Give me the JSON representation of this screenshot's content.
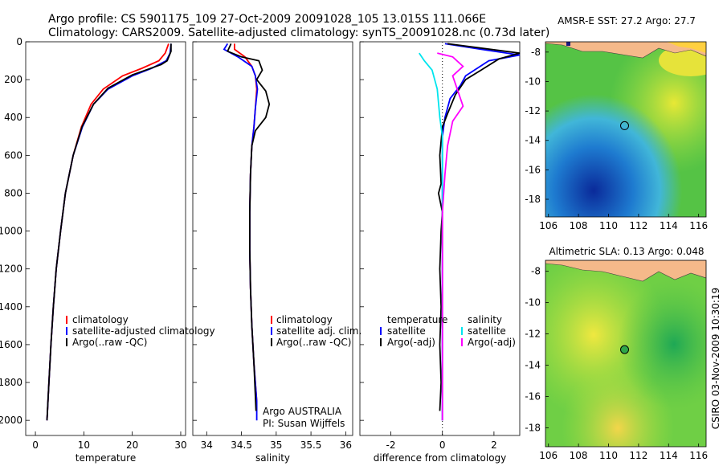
{
  "header": {
    "line1": "Argo profile: CS 5901175_109 27-Oct-2009 20091028_105 13.015S 111.066E",
    "line2": "Climatology: CARS2009. Satellite-adjusted climatology: synTS_20091028.nc (0.73d later)"
  },
  "side_label": "CSIRO 03-Nov-2009 10:30:19",
  "colors": {
    "climatology": "#ff0000",
    "satellite": "#0000ff",
    "argo": "#000000",
    "sal_satellite": "#00e5ee",
    "sal_argo": "#ff00ff",
    "land": "#f5b98a"
  },
  "chart_data": [
    {
      "type": "line",
      "id": "temperature",
      "xlabel": "temperature",
      "xlim": [
        -2,
        31
      ],
      "ylim": [
        0,
        2080
      ],
      "xticks": [
        0,
        10,
        20,
        30
      ],
      "yticks": [
        0,
        200,
        400,
        600,
        800,
        1000,
        1200,
        1400,
        1600,
        1800,
        2000
      ],
      "legend": [
        "climatology",
        "satellite-adjusted climatology",
        "Argo(..raw -QC)"
      ],
      "series": [
        {
          "name": "climatology",
          "color": "#ff0000",
          "points": [
            [
              27.5,
              10
            ],
            [
              26.8,
              60
            ],
            [
              25.5,
              100
            ],
            [
              22,
              140
            ],
            [
              18,
              180
            ],
            [
              14,
              250
            ],
            [
              11.5,
              330
            ],
            [
              9.5,
              450
            ],
            [
              7.8,
              600
            ],
            [
              6.2,
              800
            ],
            [
              5.2,
              1000
            ],
            [
              4.3,
              1200
            ],
            [
              3.7,
              1400
            ],
            [
              3.2,
              1600
            ],
            [
              2.8,
              1800
            ],
            [
              2.4,
              2000
            ]
          ]
        },
        {
          "name": "satellite-adjusted climatology",
          "color": "#0000ff",
          "points": [
            [
              28,
              10
            ],
            [
              27.8,
              60
            ],
            [
              27,
              100
            ],
            [
              24,
              140
            ],
            [
              20,
              180
            ],
            [
              15,
              250
            ],
            [
              12,
              330
            ],
            [
              9.7,
              450
            ],
            [
              7.8,
              600
            ],
            [
              6.2,
              800
            ],
            [
              5.2,
              1000
            ],
            [
              4.3,
              1200
            ],
            [
              3.7,
              1400
            ],
            [
              3.2,
              1600
            ],
            [
              2.8,
              1800
            ],
            [
              2.4,
              2000
            ]
          ]
        },
        {
          "name": "Argo(..raw -QC)",
          "color": "#000000",
          "points": [
            [
              28,
              10
            ],
            [
              28,
              50
            ],
            [
              27.2,
              100
            ],
            [
              26,
              120
            ],
            [
              20,
              175
            ],
            [
              15,
              245
            ],
            [
              12,
              330
            ],
            [
              9.6,
              450
            ],
            [
              7.8,
              600
            ],
            [
              6.2,
              800
            ],
            [
              5.2,
              1000
            ],
            [
              4.3,
              1200
            ],
            [
              3.7,
              1400
            ],
            [
              3.2,
              1600
            ],
            [
              2.8,
              1800
            ],
            [
              2.4,
              2000
            ]
          ]
        }
      ]
    },
    {
      "type": "line",
      "id": "salinity",
      "xlabel": "salinity",
      "xlim": [
        33.8,
        36.1
      ],
      "ylim": [
        0,
        2080
      ],
      "xticks": [
        34,
        34.5,
        35,
        35.5,
        36
      ],
      "legend": [
        "climatology",
        "satellite adj. clim.",
        "Argo(..raw -QC)"
      ],
      "annotations": [
        "Argo AUSTRALIA",
        "PI: Susan Wijffels"
      ],
      "series": [
        {
          "name": "climatology",
          "color": "#ff0000",
          "points": [
            [
              34.4,
              10
            ],
            [
              34.4,
              40
            ],
            [
              34.55,
              80
            ],
            [
              34.65,
              130
            ],
            [
              34.7,
              180
            ],
            [
              34.72,
              250
            ],
            [
              34.7,
              350
            ],
            [
              34.68,
              450
            ],
            [
              34.65,
              550
            ],
            [
              34.63,
              700
            ],
            [
              34.62,
              900
            ],
            [
              34.62,
              1100
            ],
            [
              34.63,
              1300
            ],
            [
              34.65,
              1500
            ],
            [
              34.68,
              1700
            ],
            [
              34.72,
              1900
            ]
          ]
        },
        {
          "name": "satellite adj. clim.",
          "color": "#0000ff",
          "points": [
            [
              34.3,
              10
            ],
            [
              34.25,
              40
            ],
            [
              34.45,
              80
            ],
            [
              34.65,
              130
            ],
            [
              34.7,
              180
            ],
            [
              34.73,
              250
            ],
            [
              34.7,
              350
            ],
            [
              34.68,
              450
            ],
            [
              34.65,
              550
            ],
            [
              34.63,
              700
            ],
            [
              34.62,
              900
            ],
            [
              34.62,
              1100
            ],
            [
              34.63,
              1300
            ],
            [
              34.65,
              1500
            ],
            [
              34.68,
              1700
            ],
            [
              34.72,
              1900
            ],
            [
              34.72,
              2000
            ]
          ]
        },
        {
          "name": "Argo(..raw -QC)",
          "color": "#000000",
          "points": [
            [
              34.35,
              10
            ],
            [
              34.3,
              50
            ],
            [
              34.5,
              80
            ],
            [
              34.75,
              100
            ],
            [
              34.8,
              150
            ],
            [
              34.72,
              200
            ],
            [
              34.85,
              260
            ],
            [
              34.9,
              330
            ],
            [
              34.85,
              400
            ],
            [
              34.7,
              470
            ],
            [
              34.65,
              550
            ],
            [
              34.63,
              700
            ],
            [
              34.62,
              900
            ],
            [
              34.62,
              1100
            ],
            [
              34.63,
              1300
            ],
            [
              34.65,
              1500
            ],
            [
              34.68,
              1700
            ],
            [
              34.71,
              1950
            ]
          ]
        }
      ]
    },
    {
      "type": "line",
      "id": "difference",
      "xlabel": "difference from climatology",
      "xlim": [
        -3.2,
        3
      ],
      "ylim": [
        0,
        2080
      ],
      "xticks": [
        -2,
        0,
        2
      ],
      "legend_temperature": [
        "temperature",
        "satellite",
        "Argo(-adj)"
      ],
      "legend_salinity": [
        "salinity",
        "satellite",
        "Argo(-adj)"
      ],
      "series": [
        {
          "name": "satellite (temperature)",
          "color": "#0000ff",
          "points": [
            [
              0.1,
              10
            ],
            [
              1.5,
              40
            ],
            [
              3,
              70
            ],
            [
              1.8,
              100
            ],
            [
              0.9,
              180
            ],
            [
              0.7,
              230
            ],
            [
              0.3,
              300
            ],
            [
              0.1,
              400
            ],
            [
              0,
              500
            ],
            [
              0,
              800
            ],
            [
              0,
              2000
            ]
          ]
        },
        {
          "name": "Argo(-adj) (temperature)",
          "color": "#000000",
          "points": [
            [
              0.2,
              10
            ],
            [
              3,
              60
            ],
            [
              2.2,
              90
            ],
            [
              1.5,
              150
            ],
            [
              0.9,
              200
            ],
            [
              0.5,
              280
            ],
            [
              0.2,
              380
            ],
            [
              0,
              450
            ],
            [
              -0.1,
              600
            ],
            [
              -0.05,
              750
            ],
            [
              -0.15,
              800
            ],
            [
              0,
              900
            ],
            [
              -0.05,
              1000
            ],
            [
              -0.1,
              1200
            ],
            [
              -0.05,
              1400
            ],
            [
              -0.1,
              1600
            ],
            [
              -0.05,
              1800
            ],
            [
              -0.1,
              1950
            ]
          ]
        },
        {
          "name": "satellite (salinity)",
          "color": "#00e5ee",
          "points": [
            [
              -0.9,
              60
            ],
            [
              -0.7,
              100
            ],
            [
              -0.4,
              150
            ],
            [
              -0.2,
              250
            ],
            [
              -0.1,
              400
            ],
            [
              0,
              500
            ],
            [
              0,
              800
            ],
            [
              0,
              2000
            ]
          ]
        },
        {
          "name": "Argo(-adj) (salinity)",
          "color": "#ff00ff",
          "points": [
            [
              -0.2,
              60
            ],
            [
              0.4,
              80
            ],
            [
              0.8,
              130
            ],
            [
              0.4,
              180
            ],
            [
              0.6,
              260
            ],
            [
              0.8,
              340
            ],
            [
              0.4,
              420
            ],
            [
              0.2,
              550
            ],
            [
              0.1,
              700
            ],
            [
              0,
              900
            ],
            [
              0,
              1200
            ],
            [
              0,
              1500
            ],
            [
              0,
              1800
            ],
            [
              0,
              2000
            ]
          ]
        }
      ]
    }
  ],
  "maps": [
    {
      "title": "AMSR-E SST: 27.2 Argo: 27.7",
      "xticks": [
        "106",
        "108",
        "110",
        "112",
        "114",
        "116"
      ],
      "yticks": [
        "-8",
        "-10",
        "-12",
        "-14",
        "-16",
        "-18"
      ],
      "marker": {
        "lon": 111.07,
        "lat": -13.0
      }
    },
    {
      "title": "Altimetric SLA: 0.13 Argo: 0.048",
      "xticks": [
        "106",
        "108",
        "110",
        "112",
        "114",
        "116"
      ],
      "yticks": [
        "-8",
        "-10",
        "-12",
        "-14",
        "-16",
        "-18"
      ],
      "marker": {
        "lon": 111.07,
        "lat": -13.0
      }
    }
  ]
}
